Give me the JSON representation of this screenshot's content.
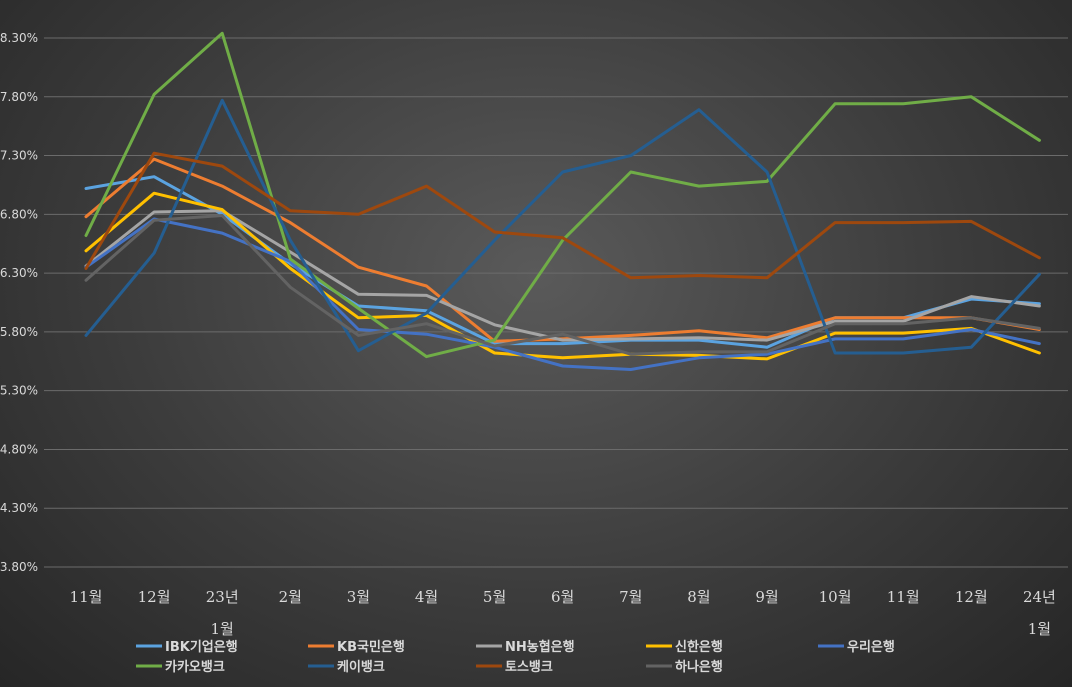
{
  "chart_data": {
    "type": "line",
    "title": "",
    "xlabel": "",
    "ylabel": "",
    "categories": [
      [
        "11월"
      ],
      [
        "12월"
      ],
      [
        "23년",
        "1월"
      ],
      [
        "2월"
      ],
      [
        "3월"
      ],
      [
        "4월"
      ],
      [
        "5월"
      ],
      [
        "6월"
      ],
      [
        "7월"
      ],
      [
        "8월"
      ],
      [
        "9월"
      ],
      [
        "10월"
      ],
      [
        "11월"
      ],
      [
        "12월"
      ],
      [
        "24년",
        "1월"
      ]
    ],
    "yticks": [
      "3.80%",
      "4.30%",
      "4.80%",
      "5.30%",
      "5.80%",
      "6.30%",
      "6.80%",
      "7.30%",
      "7.80%",
      "8.30%"
    ],
    "ylim": [
      3.8,
      8.3
    ],
    "grid": true,
    "legend_position": "bottom",
    "series": [
      {
        "name": "IBK기업은행",
        "color": "#5ba3e0",
        "values": [
          7.02,
          7.12,
          6.8,
          6.38,
          6.02,
          5.98,
          5.7,
          5.7,
          5.73,
          5.73,
          5.67,
          5.92,
          5.92,
          6.08,
          6.04
        ]
      },
      {
        "name": "KB국민은행",
        "color": "#ed7d31",
        "values": [
          6.78,
          7.27,
          7.04,
          6.73,
          6.35,
          6.19,
          5.72,
          5.74,
          5.77,
          5.81,
          5.75,
          5.92,
          5.92,
          5.92,
          5.82
        ]
      },
      {
        "name": "NH농협은행",
        "color": "#a5a5a5",
        "values": [
          6.36,
          6.82,
          6.83,
          6.48,
          6.12,
          6.11,
          5.86,
          5.73,
          5.74,
          5.75,
          5.73,
          5.89,
          5.89,
          6.1,
          6.02
        ]
      },
      {
        "name": "신한은행",
        "color": "#ffc000",
        "values": [
          6.49,
          6.98,
          6.84,
          6.34,
          5.92,
          5.94,
          5.62,
          5.58,
          5.61,
          5.6,
          5.57,
          5.79,
          5.79,
          5.83,
          5.62
        ]
      },
      {
        "name": "우리은행",
        "color": "#4472c4",
        "values": [
          6.35,
          6.76,
          6.64,
          6.4,
          5.82,
          5.78,
          5.67,
          5.51,
          5.48,
          5.58,
          5.61,
          5.74,
          5.74,
          5.82,
          5.7
        ]
      },
      {
        "name": "카카오뱅크",
        "color": "#70ad47",
        "values": [
          6.62,
          7.82,
          8.34,
          6.42,
          6.0,
          5.59,
          5.73,
          6.58,
          7.16,
          7.04,
          7.08,
          7.74,
          7.74,
          7.8,
          7.43
        ]
      },
      {
        "name": "케이뱅크",
        "color": "#255e91",
        "values": [
          5.77,
          6.47,
          7.77,
          6.58,
          5.64,
          5.96,
          6.58,
          7.16,
          7.3,
          7.69,
          7.16,
          5.62,
          5.62,
          5.67,
          6.29
        ]
      },
      {
        "name": "토스뱅크",
        "color": "#9e480e",
        "values": [
          6.34,
          7.32,
          7.21,
          6.83,
          6.8,
          7.04,
          6.65,
          6.6,
          6.26,
          6.28,
          6.26,
          6.73,
          6.73,
          6.74,
          6.43
        ]
      },
      {
        "name": "하나은행",
        "color": "#636363",
        "values": [
          6.24,
          6.75,
          6.79,
          6.18,
          5.77,
          5.87,
          5.68,
          5.78,
          5.61,
          5.63,
          5.63,
          5.87,
          5.87,
          5.92,
          5.83
        ]
      }
    ]
  }
}
